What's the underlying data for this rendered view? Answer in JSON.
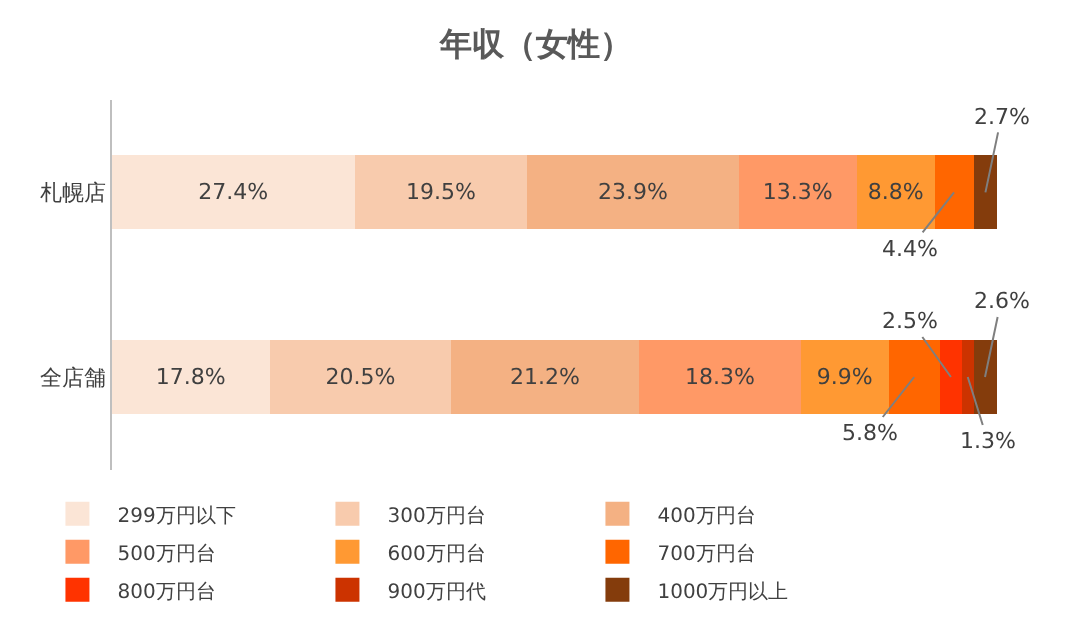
{
  "chart_data": {
    "type": "bar",
    "title": "年収（女性）",
    "orientation": "horizontal",
    "stacked": true,
    "legend": "bottom",
    "categories": [
      "札幌店",
      "全店舗"
    ],
    "series": [
      {
        "name": "299万円以下",
        "color": "#fbe5d6",
        "values": [
          27.4,
          17.8
        ],
        "value_labels": [
          "27.4%",
          "17.8%"
        ]
      },
      {
        "name": "300万円台",
        "color": "#f8cbad",
        "values": [
          19.5,
          20.5
        ],
        "value_labels": [
          "19.5%",
          "20.5%"
        ]
      },
      {
        "name": "400万円台",
        "color": "#f4b183",
        "values": [
          23.9,
          21.2
        ],
        "value_labels": [
          "23.9%",
          "21.2%"
        ]
      },
      {
        "name": "500万円台",
        "color": "#ff9966",
        "values": [
          13.3,
          18.3
        ],
        "value_labels": [
          "13.3%",
          "18.3%"
        ]
      },
      {
        "name": "600万円台",
        "color": "#ff9933",
        "values": [
          8.8,
          9.9
        ],
        "value_labels": [
          "8.8%",
          "9.9%"
        ]
      },
      {
        "name": "700万円台",
        "color": "#ff6600",
        "values": [
          4.4,
          5.8
        ],
        "value_labels": [
          "4.4%",
          "5.8%"
        ]
      },
      {
        "name": "800万円台",
        "color": "#ff3300",
        "values": [
          null,
          2.5
        ],
        "value_labels": [
          null,
          "2.5%"
        ]
      },
      {
        "name": "900万円代",
        "color": "#cc3300",
        "values": [
          null,
          1.3
        ],
        "value_labels": [
          null,
          "1.3%"
        ]
      },
      {
        "name": "1000万円以上",
        "color": "#843c0c",
        "values": [
          2.7,
          2.6
        ],
        "value_labels": [
          "2.7%",
          "2.6%"
        ]
      }
    ]
  }
}
